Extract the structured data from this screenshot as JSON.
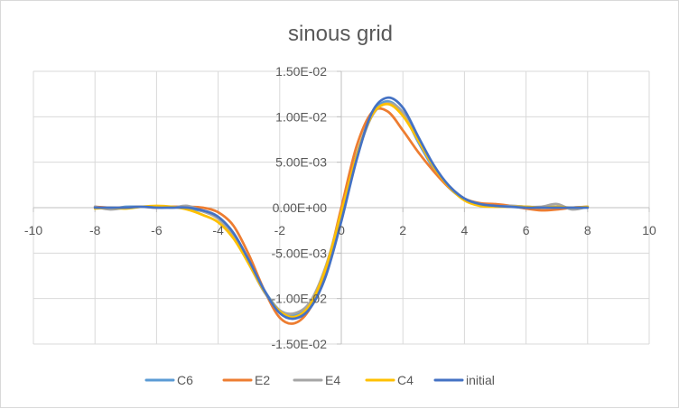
{
  "chart_data": {
    "type": "line",
    "title": "sinous grid",
    "xlabel": "",
    "ylabel": "",
    "xlim": [
      -10,
      10
    ],
    "ylim": [
      -0.015,
      0.015
    ],
    "x_ticks": [
      -10,
      -8,
      -6,
      -4,
      -2,
      0,
      2,
      4,
      6,
      8,
      10
    ],
    "x_tick_labels": [
      "-10",
      "-8",
      "-6",
      "-4",
      "-2",
      "0",
      "2",
      "4",
      "6",
      "8",
      "10"
    ],
    "y_ticks": [
      0.015,
      0.01,
      0.005,
      0,
      -0.005,
      -0.01,
      -0.015
    ],
    "y_tick_labels": [
      "1.50E-02",
      "1.00E-02",
      "5.00E-03",
      "0.00E+00",
      "-5.00E-03",
      "-1.00E-02",
      "-1.50E-02"
    ],
    "grid": true,
    "legend_position": "bottom",
    "series": [
      {
        "name": "C6",
        "color": "#5b9bd5",
        "x": [
          -8,
          -7.5,
          -7,
          -6.5,
          -6,
          -5.5,
          -5,
          -4.5,
          -4,
          -3.5,
          -3,
          -2.5,
          -2,
          -1.5,
          -1,
          -0.5,
          0,
          0.5,
          1,
          1.5,
          2,
          2.5,
          3,
          3.5,
          4,
          4.5,
          5,
          5.5,
          6,
          6.5,
          7,
          7.5,
          8
        ],
        "y": [
          0.0001,
          -0.0001,
          0.0001,
          0.0001,
          0.0001,
          0.0001,
          -0.0001,
          -0.0004,
          -0.0012,
          -0.003,
          -0.0059,
          -0.0091,
          -0.0113,
          -0.0118,
          -0.0105,
          -0.0066,
          -0.0005,
          0.0058,
          0.0103,
          0.0117,
          0.0104,
          0.0072,
          0.0043,
          0.0022,
          0.0009,
          0.0003,
          0.0002,
          0.0002,
          0.0001,
          0.0,
          0.0001,
          -0.0001,
          0.0001
        ]
      },
      {
        "name": "E2",
        "color": "#ed7d31",
        "x": [
          -8,
          -7.5,
          -7,
          -6.5,
          -6,
          -5.5,
          -5,
          -4.5,
          -4,
          -3.5,
          -3,
          -2.5,
          -2,
          -1.5,
          -1,
          -0.5,
          0,
          0.5,
          1,
          1.5,
          2,
          2.5,
          3,
          3.5,
          4,
          4.5,
          5,
          5.5,
          6,
          6.5,
          7,
          7.5,
          8
        ],
        "y": [
          0.0001,
          0.0,
          0.0,
          0.0001,
          0.0,
          0.0001,
          0.0001,
          0.0,
          -0.0005,
          -0.002,
          -0.0052,
          -0.0091,
          -0.0121,
          -0.0127,
          -0.011,
          -0.0068,
          0.0,
          0.0068,
          0.0105,
          0.0106,
          0.0085,
          0.0061,
          0.004,
          0.0022,
          0.001,
          0.0005,
          0.0004,
          0.0002,
          -0.0001,
          -0.0003,
          -0.0002,
          0.0,
          0.0001
        ]
      },
      {
        "name": "E4",
        "color": "#a5a5a5",
        "x": [
          -8,
          -7.5,
          -7,
          -6.5,
          -6,
          -5.5,
          -5,
          -4.5,
          -4,
          -3.5,
          -3,
          -2.5,
          -2,
          -1.5,
          -1,
          -0.5,
          0,
          0.5,
          1,
          1.5,
          2,
          2.5,
          3,
          3.5,
          4,
          4.5,
          5,
          5.5,
          6,
          6.5,
          7,
          7.5,
          8
        ],
        "y": [
          0.0001,
          -0.0002,
          0.0,
          0.0001,
          0.0001,
          0.0,
          0.0002,
          -0.0004,
          -0.0012,
          -0.0032,
          -0.0062,
          -0.0093,
          -0.0113,
          -0.0116,
          -0.0103,
          -0.0064,
          -0.0005,
          0.0056,
          0.0101,
          0.0115,
          0.0105,
          0.0074,
          0.0045,
          0.0024,
          0.001,
          0.0004,
          0.0001,
          0.0002,
          0.0001,
          0.0001,
          0.0004,
          -0.0002,
          0.0001
        ]
      },
      {
        "name": "C4",
        "color": "#ffc000",
        "x": [
          -8,
          -7.5,
          -7,
          -6.5,
          -6,
          -5.5,
          -5,
          -4.5,
          -4,
          -3.5,
          -3,
          -2.5,
          -2,
          -1.5,
          -1,
          -0.5,
          0,
          0.5,
          1,
          1.5,
          2,
          2.5,
          3,
          3.5,
          4,
          4.5,
          5,
          5.5,
          6,
          6.5,
          7,
          7.5,
          8
        ],
        "y": [
          -0.0001,
          0.0,
          -0.0001,
          0.0001,
          0.0002,
          0.0001,
          -0.0002,
          -0.0008,
          -0.0016,
          -0.0034,
          -0.0062,
          -0.0092,
          -0.0114,
          -0.012,
          -0.0106,
          -0.0066,
          -0.0005,
          0.0057,
          0.0102,
          0.0114,
          0.0101,
          0.0074,
          0.0045,
          0.0023,
          0.0008,
          0.0002,
          0.0001,
          0.0001,
          0.0001,
          0.0,
          0.0001,
          0.0,
          0.0001
        ]
      },
      {
        "name": "initial",
        "color": "#4472c4",
        "x": [
          -8,
          -7.5,
          -7,
          -6.5,
          -6,
          -5.5,
          -5,
          -4.5,
          -4,
          -3.5,
          -3,
          -2.5,
          -2,
          -1.5,
          -1,
          -0.5,
          0,
          0.5,
          1,
          1.5,
          2,
          2.5,
          3,
          3.5,
          4,
          4.5,
          5,
          5.5,
          6,
          6.5,
          7,
          7.5,
          8
        ],
        "y": [
          0.0,
          0.0,
          0.0,
          0.0001,
          0.0,
          0.0,
          0.0,
          -0.0003,
          -0.001,
          -0.0028,
          -0.0058,
          -0.0091,
          -0.0116,
          -0.0122,
          -0.011,
          -0.0075,
          -0.0015,
          0.0053,
          0.0105,
          0.0121,
          0.011,
          0.0078,
          0.0047,
          0.0024,
          0.001,
          0.0004,
          0.0002,
          0.0001,
          0.0,
          0.0,
          0.0,
          0.0,
          0.0
        ]
      }
    ]
  }
}
